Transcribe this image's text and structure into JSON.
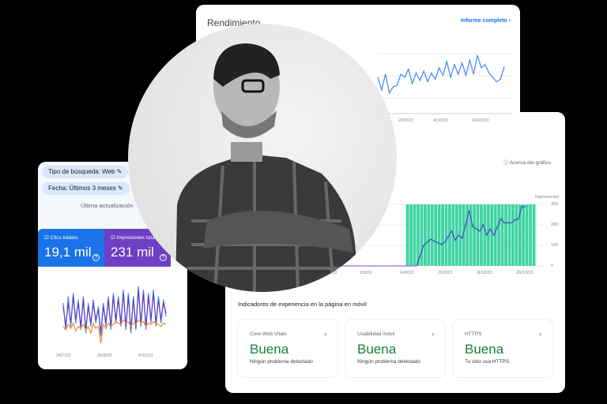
{
  "performance": {
    "title": "Rendimiento",
    "full_report": "Informe completo",
    "chevron": "chevron-right-icon",
    "x_ticks": [
      "22/9/23",
      "4/10/23",
      "16/10/23"
    ],
    "line_color": "#4285f4",
    "values": [
      55,
      35,
      60,
      30,
      40,
      42,
      60,
      55,
      68,
      45,
      62,
      50,
      65,
      48,
      62,
      52,
      70,
      58,
      80,
      55,
      75,
      60,
      78,
      58,
      82,
      60,
      90,
      70,
      75,
      62,
      55,
      48,
      52,
      72
    ]
  },
  "mobile_chart": {
    "about": "Acerca del gráfico",
    "y_label": "Impresiones",
    "y_ticks": [
      "300",
      "200",
      "100",
      "0"
    ],
    "x_ticks": [
      "21/8/23",
      "2/9/23",
      "14/9/23",
      "26/9/23",
      "8/10/23",
      "20/10/23"
    ],
    "bar_color": "#3fd3a3",
    "line_color": "#3c4bb8",
    "pre_line_color": "#9c6ade",
    "chart_data": {
      "type": "line",
      "ylim": [
        0,
        300
      ],
      "bars": {
        "from": "2023-09-18",
        "to": "2023-10-24",
        "value": 300
      },
      "points": [
        [
          "2023-08-20",
          0
        ],
        [
          "2023-09-21",
          0
        ],
        [
          "2023-09-23",
          100
        ],
        [
          "2023-09-25",
          130
        ],
        [
          "2023-09-28",
          105
        ],
        [
          "2023-09-29",
          115
        ],
        [
          "2023-10-01",
          170
        ],
        [
          "2023-10-02",
          125
        ],
        [
          "2023-10-03",
          150
        ],
        [
          "2023-10-04",
          135
        ],
        [
          "2023-10-06",
          270
        ],
        [
          "2023-10-07",
          190
        ],
        [
          "2023-10-09",
          170
        ],
        [
          "2023-10-10",
          200
        ],
        [
          "2023-10-11",
          150
        ],
        [
          "2023-10-12",
          180
        ],
        [
          "2023-10-13",
          150
        ],
        [
          "2023-10-15",
          230
        ],
        [
          "2023-10-16",
          210
        ],
        [
          "2023-10-18",
          210
        ],
        [
          "2023-10-19",
          225
        ],
        [
          "2023-10-20",
          228
        ],
        [
          "2023-10-21",
          290
        ],
        [
          "2023-10-22",
          288
        ]
      ]
    }
  },
  "experience": {
    "title": "Indicadores de experiencia en la página en móvil",
    "tiles": [
      {
        "label": "Core Web Vitals",
        "status": "Buena",
        "detail": "Ningún problema detectado"
      },
      {
        "label": "Usabilidad móvil",
        "status": "Buena",
        "detail": "Ningún problema detectado"
      },
      {
        "label": "HTTPS",
        "status": "Buena",
        "detail": "Tu sitio usa HTTPS."
      }
    ],
    "status_color": "#188038"
  },
  "filters": {
    "search_type": "Tipo de búsqueda: Web",
    "date": "Fecha: Últimos 3 meses",
    "last_update": "Última actualización"
  },
  "metrics": [
    {
      "label": "Clics totales",
      "value": "19,1 mil",
      "color": "#1a73e8"
    },
    {
      "label": "Impresiones totales",
      "value": "231 mil",
      "color": "#6e3fc3"
    }
  ],
  "small_chart": {
    "x_ticks": [
      "24/7/23",
      "30/8/23",
      "6/10/23"
    ],
    "clicks": [
      60,
      20,
      70,
      25,
      75,
      30,
      65,
      20,
      70,
      15,
      60,
      25,
      65,
      30,
      55,
      10,
      60,
      25,
      70,
      20,
      75,
      30,
      70,
      25,
      80,
      20,
      75,
      15,
      70,
      20,
      85,
      25,
      80,
      20,
      75,
      30,
      80,
      25,
      70,
      30,
      65,
      40
    ],
    "impressions": [
      55,
      25,
      60,
      30,
      70,
      35,
      60,
      25,
      65,
      20,
      55,
      30,
      60,
      35,
      50,
      15,
      55,
      30,
      65,
      25,
      70,
      35,
      65,
      30,
      75,
      25,
      70,
      20,
      65,
      25,
      80,
      30,
      75,
      25,
      70,
      35,
      75,
      30,
      65,
      35,
      60,
      45
    ],
    "third": [
      25,
      20,
      28,
      22,
      30,
      18,
      25,
      22,
      28,
      20,
      25,
      15,
      30,
      22,
      25,
      0,
      28,
      22,
      30,
      25,
      28,
      32,
      30,
      28,
      35,
      30,
      32,
      25,
      30,
      28,
      35,
      30,
      32,
      25,
      30,
      28,
      32,
      30,
      28,
      25,
      30,
      28
    ],
    "colors": [
      "#4285f4",
      "#5c3fbf",
      "#f28b2c"
    ]
  }
}
